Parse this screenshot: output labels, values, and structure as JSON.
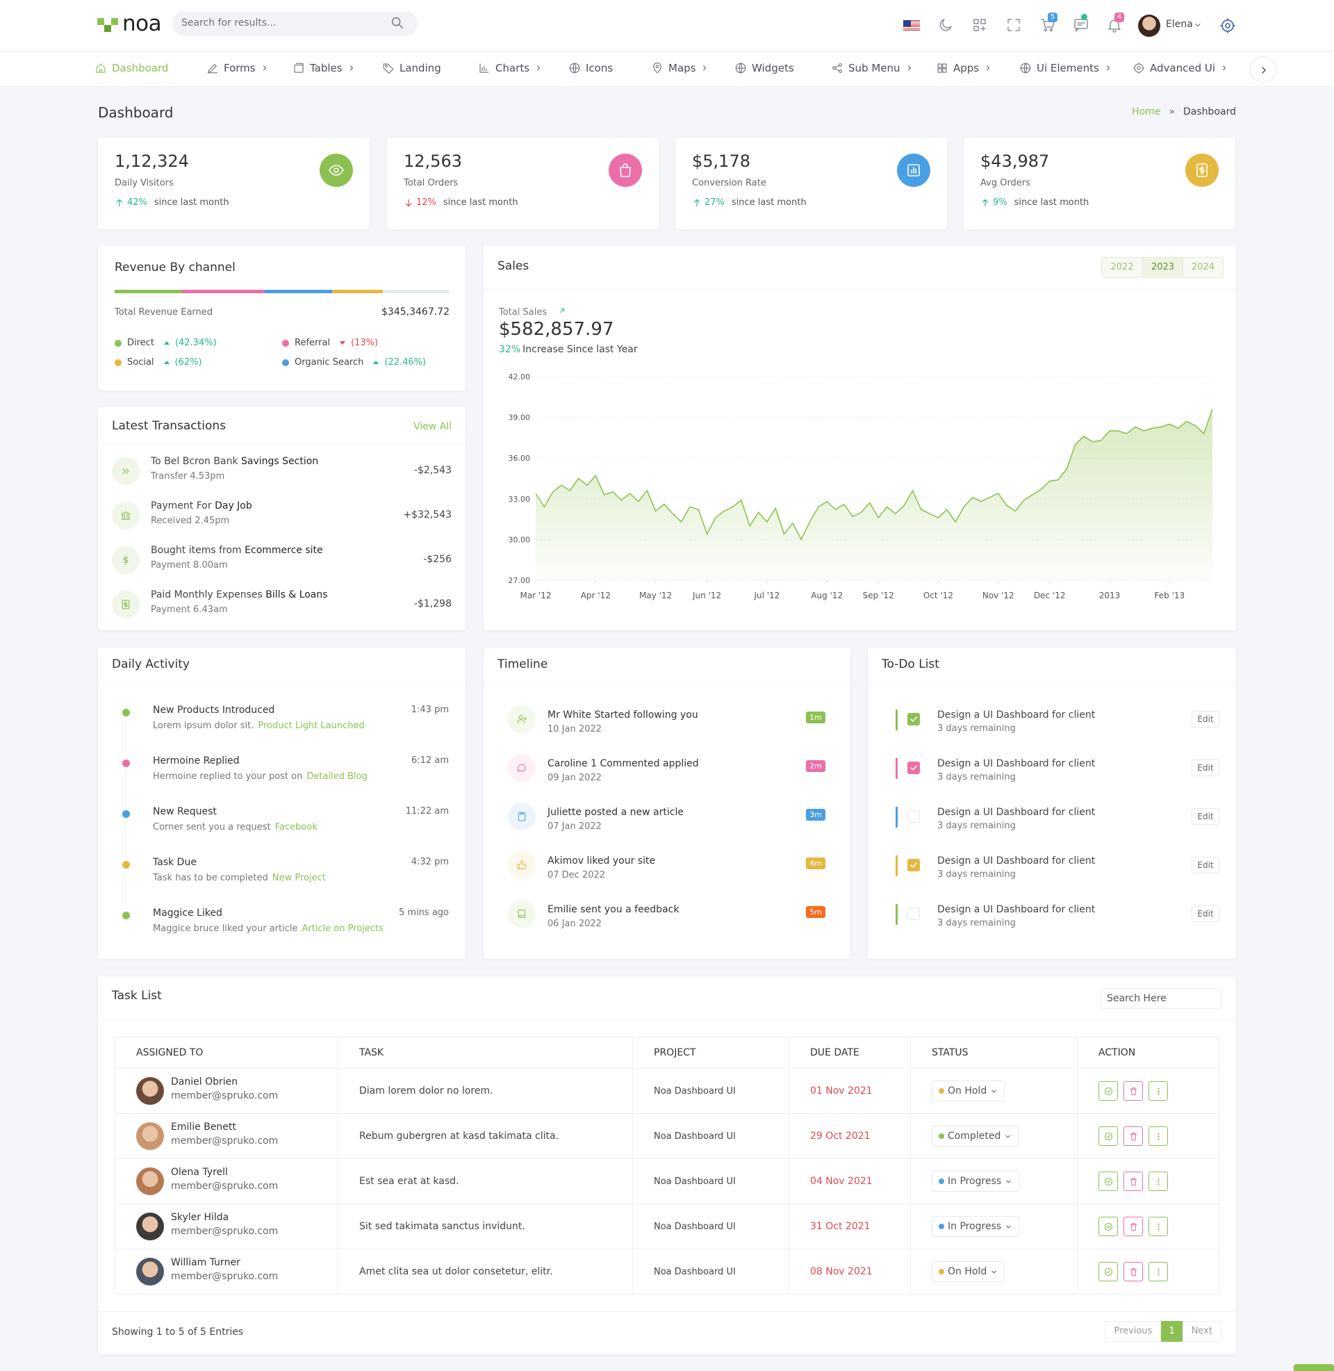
{
  "header": {
    "logo": "noa",
    "search_placeholder": "Search for results...",
    "cart_count": "5",
    "notification_count": "4",
    "user_name": "Elena"
  },
  "nav": {
    "items": [
      {
        "label": "Dashboard",
        "submenu": false
      },
      {
        "label": "Forms",
        "submenu": true
      },
      {
        "label": "Tables",
        "submenu": true
      },
      {
        "label": "Landing",
        "submenu": false
      },
      {
        "label": "Charts",
        "submenu": true
      },
      {
        "label": "Icons",
        "submenu": false
      },
      {
        "label": "Maps",
        "submenu": true
      },
      {
        "label": "Widgets",
        "submenu": false
      },
      {
        "label": "Sub Menu",
        "submenu": true
      },
      {
        "label": "Apps",
        "submenu": true
      },
      {
        "label": "Ui Elements",
        "submenu": true
      },
      {
        "label": "Advanced Ui",
        "submenu": true
      }
    ]
  },
  "page": {
    "title": "Dashboard",
    "breadcrumb": [
      "Home",
      "Dashboard"
    ],
    "breadcrumb_separator": "»"
  },
  "stats": [
    {
      "value": "1,12,324",
      "label": "Daily Visitors",
      "change": "42%",
      "trend": "up",
      "note": "since last month",
      "color": "#8cc152"
    },
    {
      "value": "12,563",
      "label": "Total Orders",
      "change": "12%",
      "trend": "down",
      "note": "since last month",
      "color": "#ec6fa8"
    },
    {
      "value": "$5,178",
      "label": "Conversion Rate",
      "change": "27%",
      "trend": "up",
      "note": "since last month",
      "color": "#4a9fe3"
    },
    {
      "value": "$43,987",
      "label": "Avg Orders",
      "change": "9%",
      "trend": "up",
      "note": "since last month",
      "color": "#e5b83f"
    }
  ],
  "revenue": {
    "title": "Revenue By channel",
    "total_label": "Total Revenue Earned",
    "total": "$345,3467.72",
    "channels": [
      {
        "name": "Direct",
        "change": "(42.34%)",
        "trend": "up",
        "color": "#8cc152"
      },
      {
        "name": "Referral",
        "change": "(13%)",
        "trend": "down",
        "color": "#ec6fa8"
      },
      {
        "name": "Social",
        "change": "(62%)",
        "trend": "up",
        "color": "#e5b83f"
      },
      {
        "name": "Organic Search",
        "change": "(22.46%)",
        "trend": "up",
        "color": "#4a9fe3"
      }
    ]
  },
  "transactions": {
    "title": "Latest Transactions",
    "link": "View All",
    "items": [
      {
        "text": "To Bel Bcron Bank",
        "emphasis": "Savings Section",
        "detail": "Transfer 4.53pm",
        "amount": "-$2,543"
      },
      {
        "text": "Payment For",
        "emphasis": "Day Job",
        "detail": "Received 2.45pm",
        "amount": "+$32,543"
      },
      {
        "text": "Bought items from",
        "emphasis": "Ecommerce site",
        "detail": "Payment 8.00am",
        "amount": "-$256"
      },
      {
        "text": "Paid Monthly Expenses",
        "emphasis": "Bills & Loans",
        "detail": "Payment 6.43am",
        "amount": "-$1,298"
      }
    ]
  },
  "sales": {
    "title": "Sales",
    "years": [
      "2022",
      "2023",
      "2024"
    ],
    "total_label": "Total Sales",
    "total": "$582,857.97",
    "increase": "32%",
    "increase_text": "Increase Since last Year",
    "chart_data": {
      "type": "line",
      "color": "#8fc14f",
      "grid": true,
      "values": [
        33.4,
        32.4,
        33.5,
        34.0,
        33.6,
        34.5,
        34.0,
        34.7,
        33.3,
        33.5,
        32.9,
        33.4,
        32.8,
        33.6,
        32.1,
        32.6,
        31.9,
        31.3,
        32.4,
        32.2,
        30.4,
        31.6,
        32.1,
        32.4,
        32.9,
        31.0,
        32.0,
        31.3,
        32.3,
        30.4,
        31.2,
        30.0,
        31.3,
        32.4,
        32.8,
        32.2,
        32.6,
        31.7,
        32.0,
        32.7,
        31.6,
        32.4,
        31.9,
        32.5,
        33.6,
        32.2,
        31.9,
        31.6,
        32.2,
        31.3,
        32.4,
        33.1,
        32.8,
        33.1,
        33.4,
        32.5,
        32.1,
        32.9,
        33.3,
        33.7,
        34.3,
        34.4,
        35.2,
        37.0,
        37.6,
        37.2,
        37.3,
        38.0,
        38.0,
        37.8,
        38.3,
        38.0,
        38.2,
        38.3,
        38.5,
        38.2,
        38.7,
        38.4,
        37.8,
        39.6
      ],
      "xlim": [
        0,
        79
      ],
      "xticks": [
        {
          "value": 0,
          "label": "Mar '12"
        },
        {
          "value": 7,
          "label": "Apr '12"
        },
        {
          "value": 14,
          "label": "May '12"
        },
        {
          "value": 20,
          "label": "Jun '12"
        },
        {
          "value": 27,
          "label": "Jul '12"
        },
        {
          "value": 34,
          "label": "Aug '12"
        },
        {
          "value": 40,
          "label": "Sep '12"
        },
        {
          "value": 47,
          "label": "Oct '12"
        },
        {
          "value": 54,
          "label": "Nov '12"
        },
        {
          "value": 60,
          "label": "Dec '12"
        },
        {
          "value": 67,
          "label": "2013"
        },
        {
          "value": 74,
          "label": "Feb '13"
        }
      ],
      "ylim": [
        27,
        42
      ],
      "yticks": [
        {
          "value": 27,
          "label": "27.00"
        },
        {
          "value": 30,
          "label": "30.00"
        },
        {
          "value": 33,
          "label": "33.00"
        },
        {
          "value": 36,
          "label": "36.00"
        },
        {
          "value": 39,
          "label": "39.00"
        },
        {
          "value": 42,
          "label": "42.00"
        }
      ]
    }
  },
  "activity": {
    "title": "Daily Activity",
    "items": [
      {
        "title": "New Products Introduced",
        "time": "1:43 pm",
        "text": "Lorem ipsum dolor sit.",
        "link": "Product Light Launched",
        "color": "#8cc152"
      },
      {
        "title": "Hermoine Replied",
        "time": "6:12 am",
        "text": "Hermoine replied to your post on",
        "link": "Detailed Blog",
        "color": "#ec6fa8"
      },
      {
        "title": "New Request",
        "time": "11:22 am",
        "text": "Corner sent you a request",
        "link": "Facebook",
        "color": "#4a9fe3"
      },
      {
        "title": "Task Due",
        "time": "4:32 pm",
        "text": "Task has to be completed",
        "link": "New Project",
        "color": "#e5b83f"
      },
      {
        "title": "Maggice Liked",
        "time": "5 mins ago",
        "text": "Maggice bruce liked your article",
        "link": "Article on Projects",
        "color": "#8cc152"
      }
    ]
  },
  "timeline": {
    "title": "Timeline",
    "items": [
      {
        "text": "Mr White Started following you",
        "date": "10 Jan 2022",
        "badge": "1m",
        "color": "#8cc152"
      },
      {
        "text": "Caroline 1 Commented applied",
        "date": "09 Jan 2022",
        "badge": "2m",
        "color": "#ec6fa8"
      },
      {
        "text": "Juliette posted a new article",
        "date": "07 Jan 2022",
        "badge": "3m",
        "color": "#4a9fe3"
      },
      {
        "text": "Akimov liked your site",
        "date": "07 Dec 2022",
        "badge": "4m",
        "color": "#e5b83f"
      },
      {
        "text": "Emilie sent you a feedback",
        "date": "06 Jan 2022",
        "badge": "5m",
        "color": "#f46c1f"
      }
    ]
  },
  "todo": {
    "title": "To-Do List",
    "button": "Edit",
    "items": [
      {
        "text": "Design a UI Dashboard for client",
        "note": "3 days remaining",
        "done": true,
        "color": "#8cc152"
      },
      {
        "text": "Design a UI Dashboard for client",
        "note": "3 days remaining",
        "done": true,
        "color": "#ec6fa8"
      },
      {
        "text": "Design a UI Dashboard for client",
        "note": "3 days remaining",
        "done": false,
        "color": "#4a9fe3"
      },
      {
        "text": "Design a UI Dashboard for client",
        "note": "3 days remaining",
        "done": true,
        "color": "#e5b83f"
      },
      {
        "text": "Design a UI Dashboard for client",
        "note": "3 days remaining",
        "done": false,
        "color": "#8cc152"
      }
    ]
  },
  "tasks": {
    "title": "Task List",
    "search_placeholder": "Search Here",
    "columns": [
      "ASSIGNED TO",
      "TASK",
      "PROJECT",
      "DUE DATE",
      "STATUS",
      "ACTION"
    ],
    "rows": [
      {
        "name": "Daniel Obrien",
        "email": "member@spruko.com",
        "task": "Diam lorem dolor no lorem.",
        "project": "Noa Dashboard UI",
        "due": "01 Nov 2021",
        "status": "On Hold",
        "status_color": "#e5b83f"
      },
      {
        "name": "Emilie Benett",
        "email": "member@spruko.com",
        "task": "Rebum gubergren at kasd takimata clita.",
        "project": "Noa Dashboard UI",
        "due": "29 Oct 2021",
        "status": "Completed",
        "status_color": "#8cc152"
      },
      {
        "name": "Olena Tyrell",
        "email": "member@spruko.com",
        "task": "Est sea erat at kasd.",
        "project": "Noa Dashboard UI",
        "due": "04 Nov 2021",
        "status": "In Progress",
        "status_color": "#4a9fe3"
      },
      {
        "name": "Skyler Hilda",
        "email": "member@spruko.com",
        "task": "Sit sed takimata sanctus invidunt.",
        "project": "Noa Dashboard UI",
        "due": "31 Oct 2021",
        "status": "In Progress",
        "status_color": "#4a9fe3"
      },
      {
        "name": "William Turner",
        "email": "member@spruko.com",
        "task": "Amet clita sea ut dolor consetetur, elitr.",
        "project": "Noa Dashboard UI",
        "due": "08 Nov 2021",
        "status": "On Hold",
        "status_color": "#e5b83f"
      }
    ],
    "footer": "Showing 1 to 5 of 5 Entries",
    "pagination": [
      "Previous",
      "1",
      "Next"
    ]
  }
}
